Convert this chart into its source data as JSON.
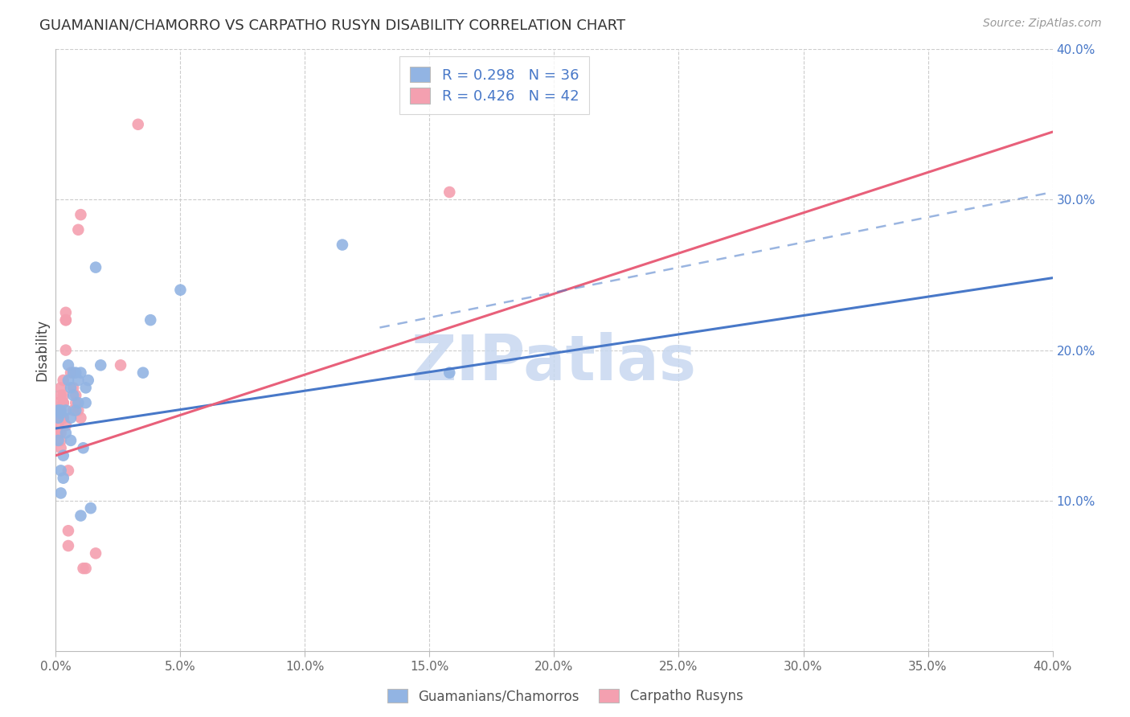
{
  "title": "GUAMANIAN/CHAMORRO VS CARPATHO RUSYN DISABILITY CORRELATION CHART",
  "source": "Source: ZipAtlas.com",
  "ylabel": "Disability",
  "xlim": [
    0.0,
    0.4
  ],
  "ylim": [
    0.0,
    0.4
  ],
  "xtick_vals": [
    0.0,
    0.05,
    0.1,
    0.15,
    0.2,
    0.25,
    0.3,
    0.35,
    0.4
  ],
  "ytick_vals": [
    0.1,
    0.2,
    0.3,
    0.4
  ],
  "blue_label": "Guamanians/Chamorros",
  "pink_label": "Carpatho Rusyns",
  "blue_R": "R = 0.298",
  "blue_N": "N = 36",
  "pink_R": "R = 0.426",
  "pink_N": "N = 42",
  "blue_color": "#92b4e3",
  "pink_color": "#f4a0b0",
  "blue_line_color": "#4878c8",
  "pink_line_color": "#e8607a",
  "legend_text_color": "#4878c8",
  "background_color": "#ffffff",
  "grid_color": "#cccccc",
  "watermark_color": "#c8d8f0",
  "blue_scatter_x": [
    0.001,
    0.001,
    0.001,
    0.002,
    0.002,
    0.002,
    0.002,
    0.003,
    0.003,
    0.004,
    0.004,
    0.005,
    0.005,
    0.006,
    0.006,
    0.006,
    0.007,
    0.007,
    0.008,
    0.008,
    0.009,
    0.009,
    0.01,
    0.01,
    0.011,
    0.012,
    0.012,
    0.013,
    0.014,
    0.016,
    0.018,
    0.035,
    0.038,
    0.05,
    0.115,
    0.158
  ],
  "blue_scatter_y": [
    0.14,
    0.155,
    0.16,
    0.158,
    0.12,
    0.105,
    0.16,
    0.13,
    0.115,
    0.16,
    0.145,
    0.19,
    0.18,
    0.175,
    0.155,
    0.14,
    0.17,
    0.185,
    0.185,
    0.16,
    0.18,
    0.165,
    0.185,
    0.09,
    0.135,
    0.165,
    0.175,
    0.18,
    0.095,
    0.255,
    0.19,
    0.185,
    0.22,
    0.24,
    0.27,
    0.185
  ],
  "pink_scatter_x": [
    0.001,
    0.001,
    0.001,
    0.001,
    0.001,
    0.001,
    0.002,
    0.002,
    0.002,
    0.002,
    0.002,
    0.002,
    0.002,
    0.003,
    0.003,
    0.003,
    0.003,
    0.003,
    0.003,
    0.004,
    0.004,
    0.004,
    0.004,
    0.004,
    0.005,
    0.005,
    0.005,
    0.006,
    0.007,
    0.007,
    0.008,
    0.008,
    0.009,
    0.009,
    0.01,
    0.01,
    0.011,
    0.012,
    0.016,
    0.026,
    0.033,
    0.158
  ],
  "pink_scatter_y": [
    0.145,
    0.155,
    0.155,
    0.16,
    0.165,
    0.15,
    0.155,
    0.16,
    0.145,
    0.14,
    0.135,
    0.17,
    0.175,
    0.155,
    0.165,
    0.17,
    0.18,
    0.165,
    0.155,
    0.15,
    0.22,
    0.22,
    0.225,
    0.2,
    0.12,
    0.08,
    0.07,
    0.185,
    0.175,
    0.16,
    0.17,
    0.165,
    0.16,
    0.28,
    0.29,
    0.155,
    0.055,
    0.055,
    0.065,
    0.19,
    0.35,
    0.305
  ],
  "blue_line_x0": 0.0,
  "blue_line_x1": 0.4,
  "blue_line_y0": 0.148,
  "blue_line_y1": 0.248,
  "pink_line_x0": 0.0,
  "pink_line_x1": 0.4,
  "pink_line_y0": 0.13,
  "pink_line_y1": 0.345,
  "dashed_line_x0": 0.13,
  "dashed_line_x1": 0.4,
  "dashed_line_y0": 0.215,
  "dashed_line_y1": 0.305
}
